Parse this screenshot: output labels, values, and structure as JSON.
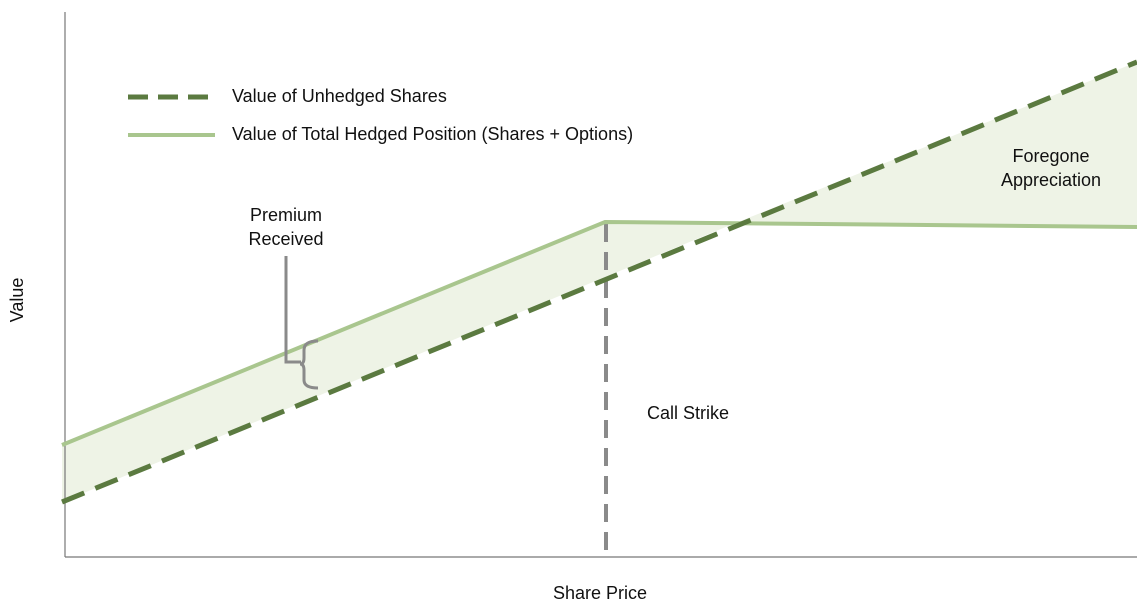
{
  "axes": {
    "x_label": "Share Price",
    "y_label": "Value"
  },
  "legend": [
    {
      "label": "Value of Unhedged Shares"
    },
    {
      "label": "Value of Total Hedged Position (Shares + Options)"
    }
  ],
  "annotations": {
    "premium": [
      "Premium",
      "Received"
    ],
    "call_strike": "Call Strike",
    "foregone": [
      "Foregone",
      "Appreciation"
    ]
  }
}
